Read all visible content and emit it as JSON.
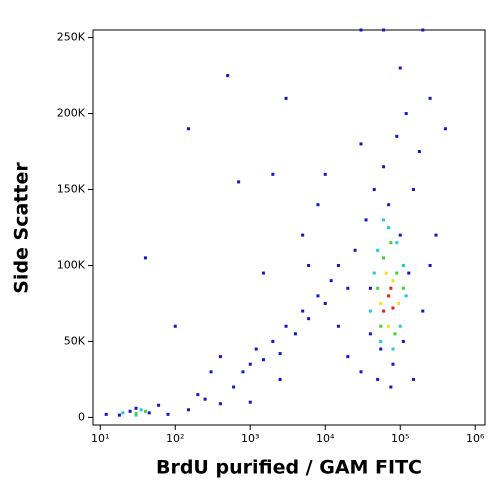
{
  "chart_data": {
    "type": "scatter",
    "x_label": "BrdU purified / GAM FITC",
    "y_label": "Side Scatter",
    "xlog": true,
    "xlim": [
      8,
      1350000
    ],
    "ylim": [
      -5000,
      255000
    ],
    "xticks": [
      {
        "value": 10,
        "label": "10¹"
      },
      {
        "value": 100,
        "label": "10²"
      },
      {
        "value": 1000,
        "label": "10³"
      },
      {
        "value": 10000,
        "label": "10⁴"
      },
      {
        "value": 100000,
        "label": "10⁵"
      },
      {
        "value": 1000000,
        "label": "10⁶"
      }
    ],
    "yticks": [
      0,
      {
        "value": 50000,
        "label": "50K"
      },
      {
        "value": 100000,
        "label": "100K"
      },
      {
        "value": 150000,
        "label": "150K"
      },
      {
        "value": 200000,
        "label": "200K"
      },
      {
        "value": 250000,
        "label": "250K"
      }
    ],
    "series": [
      {
        "color": "#1414c8",
        "x": [
          12,
          18,
          25,
          30,
          45,
          60,
          80,
          150,
          250,
          400,
          600,
          800,
          1000,
          1200,
          1500,
          2000,
          2500,
          3000,
          4000,
          5000,
          6000,
          8000,
          10000,
          12000,
          15000,
          20000,
          20000,
          25000,
          30000,
          35000,
          40000,
          45000,
          50000,
          60000,
          70000,
          80000,
          90000,
          100000,
          110000,
          120000,
          130000,
          150000,
          180000,
          200000,
          250000,
          300000,
          400000,
          30000,
          60000,
          200000,
          500,
          150,
          3000,
          700,
          2000,
          100,
          40,
          1500,
          5000,
          8000,
          15000,
          2500,
          400,
          200,
          1000,
          300,
          10000,
          6000,
          30000,
          150000,
          100000,
          250000,
          40000,
          55000,
          75000
        ],
        "values": [
          2000,
          1500,
          4000,
          6000,
          3000,
          8000,
          2000,
          5000,
          12000,
          9000,
          20000,
          30000,
          35000,
          45000,
          38000,
          50000,
          42000,
          60000,
          55000,
          70000,
          65000,
          80000,
          75000,
          90000,
          60000,
          85000,
          40000,
          110000,
          30000,
          130000,
          55000,
          150000,
          25000,
          165000,
          140000,
          35000,
          185000,
          120000,
          50000,
          200000,
          95000,
          150000,
          175000,
          70000,
          210000,
          120000,
          190000,
          255000,
          255000,
          255000,
          225000,
          190000,
          210000,
          155000,
          160000,
          60000,
          105000,
          95000,
          120000,
          140000,
          100000,
          25000,
          40000,
          15000,
          10000,
          30000,
          160000,
          100000,
          180000,
          25000,
          230000,
          100000,
          85000,
          45000,
          20000
        ]
      },
      {
        "color": "#20c8e0",
        "x": [
          20,
          30,
          35,
          50000,
          45000,
          55000,
          70000,
          90000,
          100000,
          80000,
          40000,
          110000,
          60000,
          120000
        ],
        "values": [
          3000,
          1500,
          5000,
          110000,
          95000,
          50000,
          125000,
          115000,
          60000,
          45000,
          70000,
          100000,
          130000,
          80000
        ]
      },
      {
        "color": "#40d040",
        "x": [
          30,
          40,
          60000,
          55000,
          90000,
          75000,
          85000,
          50000,
          110000
        ],
        "values": [
          2500,
          4000,
          105000,
          60000,
          95000,
          115000,
          55000,
          85000,
          85000
        ]
      },
      {
        "color": "#f0e020",
        "x": [
          65000,
          80000,
          55000,
          95000,
          70000
        ],
        "values": [
          95000,
          90000,
          75000,
          75000,
          60000
        ]
      },
      {
        "color": "#e02010",
        "x": [
          70000,
          60000,
          80000,
          75000
        ],
        "values": [
          80000,
          70000,
          72000,
          85000
        ]
      }
    ]
  }
}
